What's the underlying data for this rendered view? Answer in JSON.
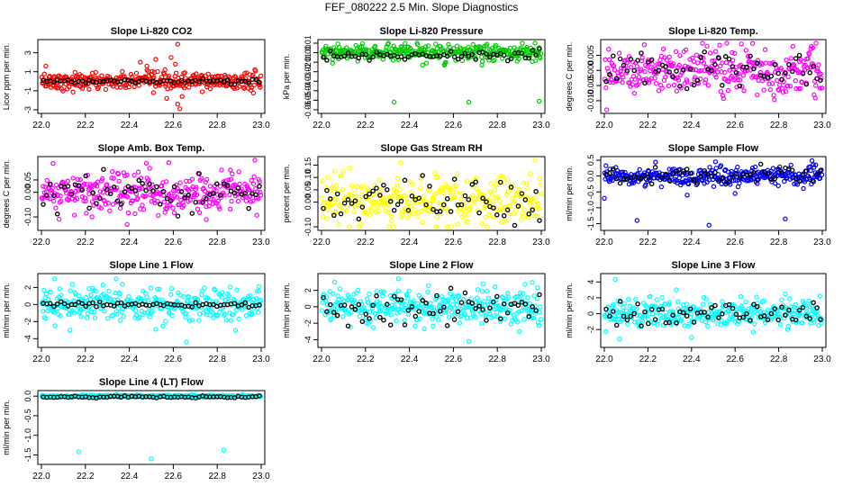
{
  "page_title": "FEF_080222  2.5 Min. Slope Diagnostics",
  "chart_data": [
    {
      "type": "scatter",
      "title": "Slope Li-820 CO2",
      "ylabel": "Licor ppm per min.",
      "xlabel": "",
      "xlim": [
        22.0,
        23.0
      ],
      "ylim": [
        -3,
        4
      ],
      "xticks": [
        "22.0",
        "22.2",
        "22.4",
        "22.6",
        "22.8",
        "23.0"
      ],
      "yticks": [
        {
          "v": -3,
          "l": "-3"
        },
        {
          "v": -1,
          "l": "-1"
        },
        {
          "v": 1,
          "l": "1"
        },
        {
          "v": 3,
          "l": "3"
        }
      ],
      "primary_color": "#ff0000",
      "primary_spread": 0.45,
      "primary_outliers": [
        [
          22.52,
          2.3
        ],
        [
          22.57,
          -1.8
        ],
        [
          22.62,
          -2.4
        ],
        [
          22.63,
          -2.9
        ],
        [
          22.62,
          3.9
        ],
        [
          22.59,
          2.5
        ],
        [
          22.45,
          2.0
        ],
        [
          22.48,
          1.6
        ],
        [
          22.02,
          1.6
        ],
        [
          22.51,
          -1.2
        ],
        [
          22.61,
          1.8
        ],
        [
          22.64,
          -1.6
        ]
      ],
      "ref_level": 0.0,
      "ref_spread": 0.12,
      "ref_color": "#000000"
    },
    {
      "type": "scatter",
      "title": "Slope Li-820 Pressure",
      "ylabel": "kPa per min.",
      "xlabel": "",
      "xlim": [
        22.0,
        23.0
      ],
      "ylim": [
        -0.06,
        0.01
      ],
      "xticks": [
        "22.0",
        "22.2",
        "22.4",
        "22.6",
        "22.8",
        "23.0"
      ],
      "yticks": [
        {
          "v": -0.06,
          "l": "-0.06"
        },
        {
          "v": -0.05,
          "l": "-0.05"
        },
        {
          "v": -0.04,
          "l": "-0.04"
        },
        {
          "v": -0.03,
          "l": "-0.03"
        },
        {
          "v": -0.02,
          "l": "-0.02"
        },
        {
          "v": -0.01,
          "l": "-0.01"
        },
        {
          "v": 0.0,
          "l": "0.00"
        },
        {
          "v": 0.01,
          "l": "0.01"
        }
      ],
      "primary_color": "#00cc00",
      "primary_spread": 0.004,
      "primary_outliers": [
        [
          22.33,
          -0.052
        ],
        [
          22.67,
          -0.052
        ],
        [
          22.99,
          -0.051
        ],
        [
          22.05,
          -0.011
        ],
        [
          22.46,
          -0.013
        ],
        [
          22.56,
          -0.012
        ],
        [
          22.73,
          -0.013
        ],
        [
          22.89,
          -0.009
        ]
      ],
      "ref_level": -0.003,
      "ref_spread": 0.0025,
      "ref_color": "#000000"
    },
    {
      "type": "scatter",
      "title": "Slope Li-820 Temp.",
      "ylabel": "degrees C per min.",
      "xlabel": "",
      "xlim": [
        22.0,
        23.0
      ],
      "ylim": [
        -0.013,
        0.009
      ],
      "xticks": [
        "22.0",
        "22.2",
        "22.4",
        "22.6",
        "22.8",
        "23.0"
      ],
      "yticks": [
        {
          "v": -0.01,
          "l": "-0.010"
        },
        {
          "v": -0.005,
          "l": "-0.005"
        },
        {
          "v": 0.0,
          "l": "0.000"
        },
        {
          "v": 0.005,
          "l": "0.005"
        }
      ],
      "primary_color": "#ff00ff",
      "primary_spread": 0.0038,
      "primary_outliers": [
        [
          22.95,
          0.008
        ],
        [
          22.02,
          0.007
        ],
        [
          22.9,
          -0.006
        ],
        [
          22.97,
          -0.005
        ]
      ],
      "ref_level": 0.0008,
      "ref_spread": 0.003,
      "ref_color": "#000000"
    },
    {
      "type": "scatter",
      "title": "Slope Amb. Box Temp.",
      "ylabel": "degrees C per min.",
      "xlabel": "",
      "xlim": [
        22.0,
        23.0
      ],
      "ylim": [
        -0.14,
        0.13
      ],
      "xticks": [
        "22.0",
        "22.2",
        "22.4",
        "22.6",
        "22.8",
        "23.0"
      ],
      "yticks": [
        {
          "v": -0.1,
          "l": "-0.10"
        },
        {
          "v": 0.0,
          "l": "0.00"
        },
        {
          "v": 0.05,
          "l": "0.05"
        }
      ],
      "primary_color": "#ff00ff",
      "primary_spread": 0.04,
      "primary_outliers": [
        [
          22.58,
          0.12
        ],
        [
          22.39,
          -0.13
        ],
        [
          22.75,
          -0.11
        ],
        [
          22.23,
          -0.1
        ],
        [
          22.86,
          0.09
        ]
      ],
      "ref_level": 0.0,
      "ref_spread": 0.035,
      "ref_color": "#000000"
    },
    {
      "type": "scatter",
      "title": "Slope Gas Stream RH",
      "ylabel": "percent per min.",
      "xlabel": "",
      "xlim": [
        22.0,
        23.0
      ],
      "ylim": [
        -0.1,
        0.17
      ],
      "xticks": [
        "22.0",
        "22.2",
        "22.4",
        "22.6",
        "22.8",
        "23.0"
      ],
      "yticks": [
        {
          "v": -0.1,
          "l": "-0.10"
        },
        {
          "v": 0.0,
          "l": "0.00"
        },
        {
          "v": 0.05,
          "l": "0.05"
        },
        {
          "v": 0.1,
          "l": "0.10"
        },
        {
          "v": 0.15,
          "l": "0.15"
        }
      ],
      "primary_color": "#ffff00",
      "primary_spread": 0.05,
      "primary_outliers": [
        [
          22.36,
          0.16
        ],
        [
          22.03,
          0.1
        ],
        [
          22.52,
          0.1
        ]
      ],
      "ref_level": 0.0,
      "ref_spread": 0.04,
      "ref_color": "#000000"
    },
    {
      "type": "scatter",
      "title": "Slope Sample Flow",
      "ylabel": "ml/min per min.",
      "xlabel": "",
      "xlim": [
        22.0,
        23.0
      ],
      "ylim": [
        -1.6,
        0.5
      ],
      "xticks": [
        "22.0",
        "22.2",
        "22.4",
        "22.6",
        "22.8",
        "23.0"
      ],
      "yticks": [
        {
          "v": -1.5,
          "l": "-1.5"
        },
        {
          "v": -1.0,
          "l": "-1.0"
        },
        {
          "v": -0.5,
          "l": "-0.5"
        },
        {
          "v": 0.0,
          "l": "0.0"
        },
        {
          "v": 0.5,
          "l": "0.5"
        }
      ],
      "primary_color": "#0000ff",
      "primary_spread": 0.15,
      "primary_outliers": [
        [
          22.15,
          -1.4
        ],
        [
          22.48,
          -1.55
        ],
        [
          22.83,
          -1.35
        ],
        [
          22.0,
          -0.7
        ],
        [
          22.38,
          -0.6
        ],
        [
          22.6,
          -0.55
        ],
        [
          22.51,
          0.45
        ],
        [
          22.97,
          0.35
        ]
      ],
      "ref_level": 0.0,
      "ref_spread": 0.15,
      "ref_color": "#000000"
    },
    {
      "type": "scatter",
      "title": "Slope Line 1 Flow",
      "ylabel": "ml/min per min.",
      "xlabel": "",
      "xlim": [
        22.0,
        23.0
      ],
      "ylim": [
        -4.6,
        3.2
      ],
      "xticks": [
        "22.0",
        "22.2",
        "22.4",
        "22.6",
        "22.8",
        "23.0"
      ],
      "yticks": [
        {
          "v": -4,
          "l": "-4"
        },
        {
          "v": -2,
          "l": "-2"
        },
        {
          "v": 0,
          "l": "0"
        },
        {
          "v": 2,
          "l": "2"
        }
      ],
      "primary_color": "#00ffff",
      "primary_spread": 1.0,
      "primary_outliers": [
        [
          22.66,
          -4.4
        ],
        [
          22.06,
          3.0
        ],
        [
          22.34,
          3.0
        ],
        [
          22.13,
          -3.0
        ],
        [
          22.99,
          2.1
        ],
        [
          22.52,
          -2.9
        ]
      ],
      "ref_level": 0.0,
      "ref_spread": 0.15,
      "ref_color": "#000000"
    },
    {
      "type": "scatter",
      "title": "Slope Line 2 Flow",
      "ylabel": "ml/min per min.",
      "xlabel": "",
      "xlim": [
        22.0,
        23.0
      ],
      "ylim": [
        -4.5,
        3.6
      ],
      "xticks": [
        "22.0",
        "22.2",
        "22.4",
        "22.6",
        "22.8",
        "23.0"
      ],
      "yticks": [
        {
          "v": -4,
          "l": "-4"
        },
        {
          "v": -2,
          "l": "-2"
        },
        {
          "v": 0,
          "l": "0"
        },
        {
          "v": 2,
          "l": "2"
        }
      ],
      "primary_color": "#00ffff",
      "primary_spread": 1.0,
      "primary_outliers": [
        [
          22.67,
          -4.2
        ],
        [
          22.35,
          3.4
        ],
        [
          22.06,
          3.0
        ],
        [
          22.9,
          -3.0
        ]
      ],
      "ref_level": 0.0,
      "ref_spread": 1.0,
      "ref_color": "#000000"
    },
    {
      "type": "scatter",
      "title": "Slope Line 3 Flow",
      "ylabel": "ml/min per min.",
      "xlabel": "",
      "xlim": [
        22.0,
        23.0
      ],
      "ylim": [
        -3.8,
        4.6
      ],
      "xticks": [
        "22.0",
        "22.2",
        "22.4",
        "22.6",
        "22.8",
        "23.0"
      ],
      "yticks": [
        {
          "v": -2,
          "l": "-2"
        },
        {
          "v": 0,
          "l": "0"
        },
        {
          "v": 2,
          "l": "2"
        },
        {
          "v": 4,
          "l": "4"
        }
      ],
      "primary_color": "#00ffff",
      "primary_spread": 0.9,
      "primary_outliers": [
        [
          22.05,
          4.3
        ],
        [
          22.33,
          3.0
        ],
        [
          22.07,
          -3.2
        ],
        [
          22.4,
          -3.0
        ],
        [
          22.83,
          2.5
        ]
      ],
      "ref_level": 0.0,
      "ref_spread": 0.9,
      "ref_color": "#000000"
    },
    {
      "type": "scatter",
      "title": "Slope Line 4 (LT) Flow",
      "ylabel": "ml/min per min.",
      "xlabel": "",
      "xlim": [
        22.0,
        23.0
      ],
      "ylim": [
        -1.65,
        0.05
      ],
      "xticks": [
        "22.0",
        "22.2",
        "22.4",
        "22.6",
        "22.8",
        "23.0"
      ],
      "yticks": [
        {
          "v": -1.5,
          "l": "-1.5"
        },
        {
          "v": -1.0,
          "l": "-1.0"
        },
        {
          "v": -0.5,
          "l": "-0.5"
        },
        {
          "v": 0.0,
          "l": "0.0"
        }
      ],
      "primary_color": "#00ffff",
      "primary_spread": 0.015,
      "primary_outliers": [
        [
          22.17,
          -1.42
        ],
        [
          22.5,
          -1.6
        ],
        [
          22.83,
          -1.38
        ]
      ],
      "ref_level": -0.02,
      "ref_spread": 0.015,
      "ref_color": "#000000"
    }
  ]
}
